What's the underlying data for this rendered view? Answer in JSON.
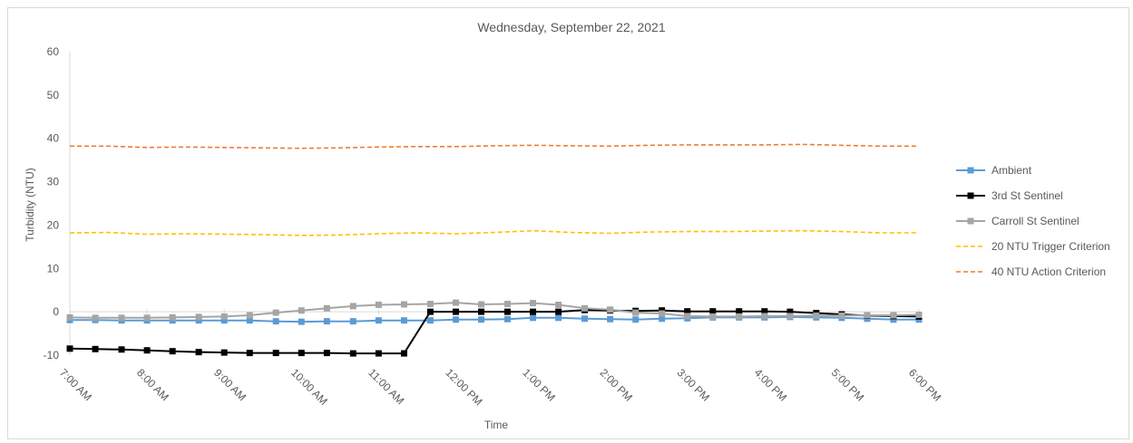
{
  "chart_data": {
    "type": "line",
    "title": "Wednesday, September 22, 2021",
    "xlabel": "Time",
    "ylabel": "Turbidity (NTU)",
    "ylim": [
      -10,
      60
    ],
    "yticks": [
      -10,
      0,
      10,
      20,
      30,
      40,
      50,
      60
    ],
    "grid": false,
    "legend_position": "right",
    "x_tick_labels": [
      "7:00 AM",
      "8:00 AM",
      "9:00 AM",
      "10:00 AM",
      "11:00 AM",
      "12:00 PM",
      "1:00 PM",
      "2:00 PM",
      "3:00 PM",
      "4:00 PM",
      "5:00 PM",
      "6:00 PM"
    ],
    "x_range_hours": [
      7,
      18
    ],
    "series": [
      {
        "name": "Ambient",
        "color": "#5b9bd5",
        "style": "solid",
        "marker": "square",
        "x": [
          7.0,
          7.33,
          7.67,
          8.0,
          8.33,
          8.67,
          9.0,
          9.33,
          9.67,
          10.0,
          10.33,
          10.67,
          11.0,
          11.33,
          11.67,
          12.0,
          12.33,
          12.67,
          13.0,
          13.33,
          13.67,
          14.0,
          14.33,
          14.67,
          15.0,
          15.33,
          15.67,
          16.0,
          16.33,
          16.67,
          17.0,
          17.33,
          17.67,
          18.0
        ],
        "values": [
          -1.9,
          -1.9,
          -2.0,
          -2.0,
          -2.0,
          -2.0,
          -2.0,
          -2.0,
          -2.2,
          -2.3,
          -2.2,
          -2.2,
          -2.0,
          -2.0,
          -2.0,
          -1.8,
          -1.8,
          -1.7,
          -1.4,
          -1.4,
          -1.6,
          -1.7,
          -1.8,
          -1.6,
          -1.5,
          -1.3,
          -1.3,
          -1.3,
          -1.2,
          -1.3,
          -1.4,
          -1.6,
          -1.8,
          -1.8
        ]
      },
      {
        "name": "3rd St Sentinel",
        "color": "#000000",
        "style": "solid",
        "marker": "square",
        "x": [
          7.0,
          7.33,
          7.67,
          8.0,
          8.33,
          8.67,
          9.0,
          9.33,
          9.67,
          10.0,
          10.33,
          10.67,
          11.0,
          11.33,
          11.67,
          12.0,
          12.33,
          12.67,
          13.0,
          13.33,
          13.67,
          14.0,
          14.33,
          14.67,
          15.0,
          15.33,
          15.67,
          16.0,
          16.33,
          16.67,
          17.0,
          17.33,
          17.67,
          18.0
        ],
        "values": [
          -8.5,
          -8.6,
          -8.7,
          -8.9,
          -9.1,
          -9.3,
          -9.4,
          -9.5,
          -9.5,
          -9.5,
          -9.5,
          -9.6,
          -9.6,
          -9.6,
          0.0,
          0.0,
          0.0,
          0.0,
          0.0,
          0.0,
          0.4,
          0.3,
          0.2,
          0.3,
          0.1,
          0.1,
          0.1,
          0.1,
          0.0,
          -0.3,
          -0.6,
          -0.9,
          -1.0,
          -1.1
        ]
      },
      {
        "name": "Carroll St Sentinel",
        "color": "#a5a5a5",
        "style": "solid",
        "marker": "square",
        "x": [
          7.0,
          7.33,
          7.67,
          8.0,
          8.33,
          8.67,
          9.0,
          9.33,
          9.67,
          10.0,
          10.33,
          10.67,
          11.0,
          11.33,
          11.67,
          12.0,
          12.33,
          12.67,
          13.0,
          13.33,
          13.67,
          14.0,
          14.33,
          14.67,
          15.0,
          15.33,
          15.67,
          16.0,
          16.33,
          16.67,
          17.0,
          17.33,
          17.67,
          18.0
        ],
        "values": [
          -1.3,
          -1.4,
          -1.4,
          -1.4,
          -1.3,
          -1.2,
          -1.1,
          -0.8,
          -0.2,
          0.3,
          0.8,
          1.3,
          1.6,
          1.7,
          1.8,
          2.1,
          1.7,
          1.8,
          2.0,
          1.6,
          0.8,
          0.5,
          -0.2,
          -0.4,
          -1.0,
          -1.1,
          -1.1,
          -1.0,
          -1.0,
          -0.9,
          -0.9,
          -0.8,
          -0.8,
          -0.7
        ]
      },
      {
        "name": "20 NTU Trigger Criterion",
        "color": "#ffc000",
        "style": "dashed",
        "marker": "none",
        "x": [
          7.0,
          7.5,
          8.0,
          8.5,
          9.0,
          9.5,
          10.0,
          10.5,
          11.0,
          11.5,
          12.0,
          12.5,
          13.0,
          13.5,
          14.0,
          14.5,
          15.0,
          15.5,
          16.0,
          16.5,
          17.0,
          17.5,
          18.0
        ],
        "values": [
          18.2,
          18.3,
          17.9,
          18.0,
          17.9,
          17.8,
          17.6,
          17.7,
          18.0,
          18.2,
          18.0,
          18.3,
          18.7,
          18.3,
          18.1,
          18.4,
          18.5,
          18.5,
          18.6,
          18.7,
          18.5,
          18.2,
          18.2
        ]
      },
      {
        "name": "40 NTU Action Criterion",
        "color": "#ed7d31",
        "style": "dashed",
        "marker": "none",
        "x": [
          7.0,
          7.5,
          8.0,
          8.5,
          9.0,
          9.5,
          10.0,
          10.5,
          11.0,
          11.5,
          12.0,
          12.5,
          13.0,
          13.5,
          14.0,
          14.5,
          15.0,
          15.5,
          16.0,
          16.5,
          17.0,
          17.5,
          18.0
        ],
        "values": [
          38.2,
          38.2,
          37.9,
          38.0,
          37.9,
          37.8,
          37.7,
          37.8,
          38.0,
          38.1,
          38.1,
          38.3,
          38.4,
          38.3,
          38.2,
          38.4,
          38.5,
          38.5,
          38.5,
          38.6,
          38.4,
          38.2,
          38.2
        ]
      }
    ]
  }
}
